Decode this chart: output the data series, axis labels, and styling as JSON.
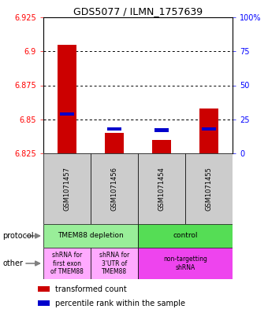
{
  "title": "GDS5077 / ILMN_1757639",
  "samples": [
    "GSM1071457",
    "GSM1071456",
    "GSM1071454",
    "GSM1071455"
  ],
  "bar_bottom": 6.825,
  "red_values": [
    6.905,
    6.84,
    6.835,
    6.858
  ],
  "blue_values": [
    6.854,
    6.843,
    6.842,
    6.843
  ],
  "ylim_min": 6.825,
  "ylim_max": 6.925,
  "yticks_left": [
    6.825,
    6.85,
    6.875,
    6.9,
    6.925
  ],
  "ytick_left_labels": [
    "6.825",
    "6.85",
    "6.875",
    "6.9",
    "6.925"
  ],
  "yticks_right_pct": [
    0,
    25,
    50,
    75,
    100
  ],
  "ytick_right_labels": [
    "0",
    "25",
    "50",
    "75",
    "100%"
  ],
  "grid_yticks": [
    6.85,
    6.875,
    6.9
  ],
  "protocol_labels": [
    "TMEM88 depletion",
    "control"
  ],
  "other_labels": [
    "shRNA for\nfirst exon\nof TMEM88",
    "shRNA for\n3'UTR of\nTMEM88",
    "non-targetting\nshRNA"
  ],
  "protocol_colors": [
    "#99ee99",
    "#55dd55"
  ],
  "other_colors": [
    "#ffaaff",
    "#ffaaff",
    "#ee44ee"
  ],
  "bar_color_red": "#cc0000",
  "bar_color_blue": "#0000cc",
  "legend_red": "transformed count",
  "legend_blue": "percentile rank within the sample",
  "bg_color": "#cccccc",
  "label_text": [
    "protocol",
    "other"
  ],
  "bar_width": 0.4
}
